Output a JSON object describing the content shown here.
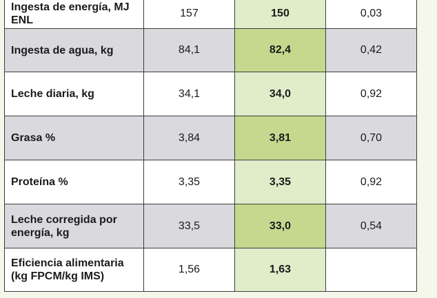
{
  "table": {
    "rows": [
      {
        "label": "Ingesta de energía, MJ ENL",
        "control": "157",
        "treatment": "150",
        "p_value": "0,03",
        "shade": "white"
      },
      {
        "label": "Ingesta de agua, kg",
        "control": "84,1",
        "treatment": "82,4",
        "p_value": "0,42",
        "shade": "gray"
      },
      {
        "label": "Leche diaria, kg",
        "control": "34,1",
        "treatment": "34,0",
        "p_value": "0,92",
        "shade": "white"
      },
      {
        "label": "Grasa %",
        "control": "3,84",
        "treatment": "3,81",
        "p_value": "0,70",
        "shade": "gray"
      },
      {
        "label": "Proteína %",
        "control": "3,35",
        "treatment": "3,35",
        "p_value": "0,92",
        "shade": "white"
      },
      {
        "label": "Leche corregida por energía, kg",
        "control": "33,5",
        "treatment": "33,0",
        "p_value": "0,54",
        "shade": "gray"
      },
      {
        "label": "Eficiencia alimentaria (kg FPCM/kg IMS)",
        "control": "1,56",
        "treatment": "1,63",
        "p_value": "",
        "shade": "white"
      }
    ]
  },
  "colors": {
    "page_background": "#f4f7ea",
    "row_white": "#ffffff",
    "row_gray": "#d9d9de",
    "highlight_light": "#e1ecc9",
    "highlight_dark": "#c5d98e",
    "border": "#3b3b3b"
  }
}
